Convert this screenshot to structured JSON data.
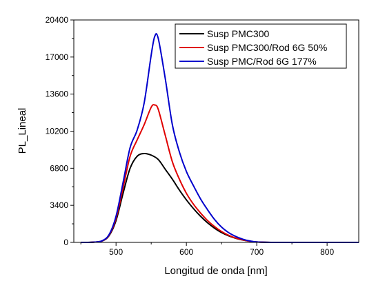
{
  "chart_data": {
    "type": "line",
    "title": "",
    "xlabel": "Longitud de onda [nm]",
    "ylabel": "PL_Lineal",
    "xlim": [
      440,
      845
    ],
    "ylim": [
      0,
      20400
    ],
    "x_ticks": [
      500,
      600,
      700,
      800
    ],
    "y_ticks": [
      0,
      3400,
      6800,
      10200,
      13600,
      17000,
      20400
    ],
    "grid": false,
    "legend_position": "top-right",
    "series": [
      {
        "name": "Susp PMC300",
        "color": "#000000",
        "x": [
          450,
          460,
          470,
          480,
          490,
          500,
          510,
          520,
          530,
          540,
          550,
          560,
          570,
          580,
          590,
          600,
          610,
          620,
          630,
          640,
          650,
          660,
          670,
          680,
          690,
          700,
          720,
          760,
          800,
          845
        ],
        "y": [
          0,
          0,
          30,
          120,
          600,
          2000,
          4500,
          6800,
          7900,
          8150,
          8000,
          7600,
          6700,
          5800,
          4800,
          3900,
          3100,
          2400,
          1800,
          1300,
          900,
          600,
          380,
          220,
          110,
          40,
          0,
          0,
          0,
          0
        ]
      },
      {
        "name": "Susp PMC300/Rod 6G 50%",
        "color": "#e00000",
        "x": [
          450,
          460,
          470,
          480,
          490,
          500,
          510,
          520,
          530,
          540,
          550,
          555,
          560,
          570,
          580,
          590,
          600,
          610,
          620,
          630,
          640,
          650,
          660,
          670,
          680,
          690,
          700,
          720,
          760,
          800,
          845
        ],
        "y": [
          0,
          0,
          30,
          130,
          650,
          2200,
          5000,
          7900,
          9400,
          10800,
          12400,
          12600,
          12200,
          9800,
          7400,
          5800,
          4500,
          3500,
          2700,
          2000,
          1450,
          1000,
          650,
          400,
          230,
          110,
          40,
          0,
          0,
          0,
          0
        ]
      },
      {
        "name": "Susp PMC/Rod 6G 177%",
        "color": "#0000cc",
        "x": [
          450,
          460,
          470,
          480,
          490,
          500,
          510,
          520,
          530,
          540,
          550,
          555,
          560,
          570,
          580,
          590,
          600,
          610,
          620,
          630,
          640,
          650,
          660,
          670,
          680,
          690,
          700,
          720,
          760,
          800,
          845
        ],
        "y": [
          0,
          0,
          30,
          140,
          700,
          2400,
          5500,
          8700,
          10300,
          12800,
          17200,
          18900,
          18700,
          15000,
          10800,
          8300,
          6500,
          5200,
          4000,
          3000,
          2100,
          1400,
          900,
          550,
          300,
          130,
          40,
          0,
          0,
          0,
          0
        ]
      }
    ]
  }
}
